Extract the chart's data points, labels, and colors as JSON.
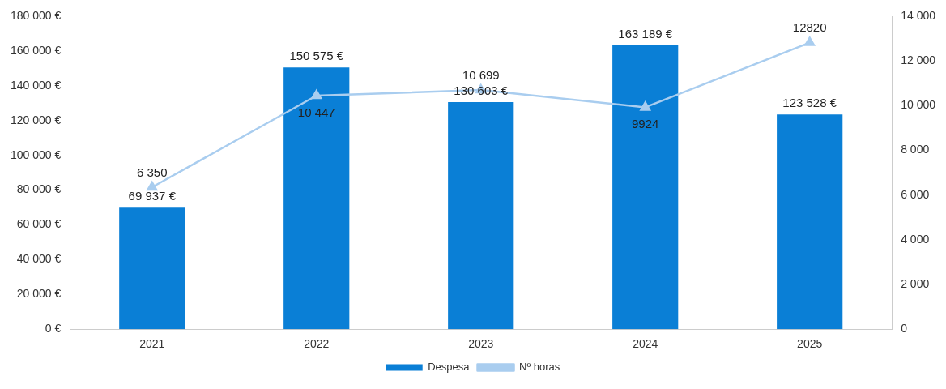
{
  "chart_data": {
    "type": "bar",
    "categories": [
      "2021",
      "2022",
      "2023",
      "2024",
      "2025"
    ],
    "series": [
      {
        "name": "Despesa",
        "color": "#0a7fd6",
        "values": [
          69937,
          150575,
          130603,
          163189,
          123528
        ],
        "value_labels": [
          "69 937 €",
          "150 575 €",
          "130 603 €",
          "163 189 €",
          "123 528 €"
        ]
      },
      {
        "name": "Nº horas",
        "type": "line",
        "axis": "y2",
        "color": "#a9cdef",
        "values": [
          6350,
          10447,
          10699,
          9924,
          12820
        ],
        "value_labels": [
          "6 350",
          "10 447",
          "10 699",
          "9924",
          "12820"
        ]
      }
    ],
    "ylim": [
      0,
      180000
    ],
    "yticks": [
      {
        "value": 0,
        "label": "0 €"
      },
      {
        "value": 20000,
        "label": "20 000 €"
      },
      {
        "value": 40000,
        "label": "40 000 €"
      },
      {
        "value": 60000,
        "label": "60 000 €"
      },
      {
        "value": 80000,
        "label": "80 000 €"
      },
      {
        "value": 100000,
        "label": "100 000 €"
      },
      {
        "value": 120000,
        "label": "120 000 €"
      },
      {
        "value": 140000,
        "label": "140 000 €"
      },
      {
        "value": 160000,
        "label": "160 000 €"
      },
      {
        "value": 180000,
        "label": "180 000 €"
      }
    ],
    "y2lim": [
      0,
      14000
    ],
    "y2ticks": [
      0,
      {
        "value": 2000,
        "label": "2 000"
      },
      {
        "value": 4000,
        "label": "4 000"
      },
      {
        "value": 6000,
        "label": "6 000"
      },
      {
        "value": 8000,
        "label": "8 000"
      },
      {
        "value": 10000,
        "label": "10 000"
      },
      {
        "value": 12000,
        "label": "12 000"
      },
      {
        "value": 14000,
        "label": "14 000"
      }
    ],
    "grid": false,
    "legend": "bottom",
    "marker": "triangle",
    "line_style": "solid"
  }
}
